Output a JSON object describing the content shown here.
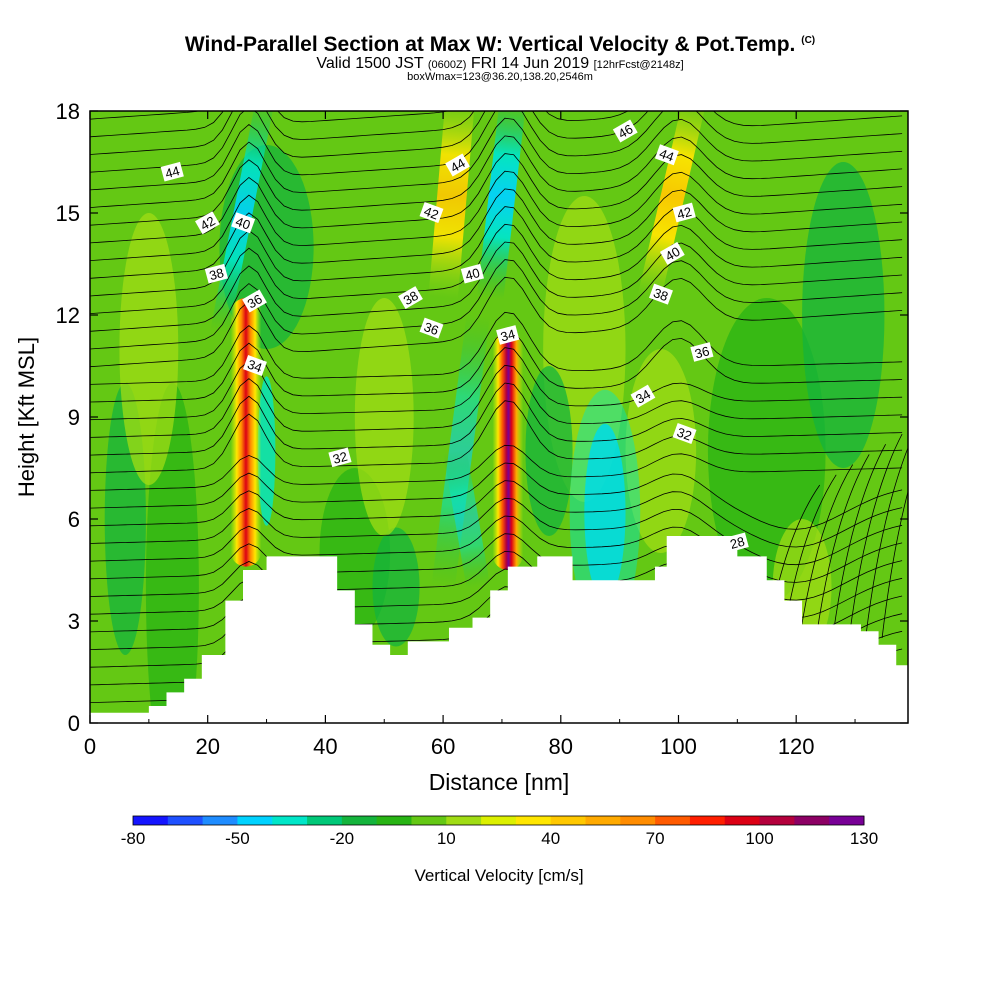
{
  "header": {
    "title": "Wind-Parallel Section at Max W: Vertical Velocity & Pot.Temp.",
    "copyright": "(C)",
    "valid_prefix": "Valid 1500 JST",
    "valid_utc": "(0600Z)",
    "valid_date": "FRI 14 Jun 2019",
    "forecast": "[12hrFcst@2148z]",
    "boxinfo": "boxWmax=123@36.20,138.20,2546m"
  },
  "chart_data": {
    "type": "heatmap",
    "xlabel": "Distance [nm]",
    "ylabel": "Height [Kft MSL]",
    "xlim": [
      0,
      139
    ],
    "ylim": [
      0,
      18
    ],
    "xticks": [
      0,
      20,
      40,
      60,
      80,
      100,
      120
    ],
    "yticks": [
      0,
      3,
      6,
      9,
      12,
      15,
      18
    ],
    "colorbar": {
      "label": "Vertical Velocity [cm/s]",
      "ticks": [
        -80,
        -50,
        -20,
        10,
        40,
        70,
        100,
        130
      ],
      "colors": [
        "#1414ff",
        "#1e50ff",
        "#1e8cff",
        "#00d2ff",
        "#00e6c8",
        "#00c878",
        "#14b43c",
        "#28b414",
        "#64c814",
        "#a0dc14",
        "#dcf000",
        "#ffe600",
        "#ffc800",
        "#ffaa00",
        "#ff8c00",
        "#ff5a00",
        "#ff1e00",
        "#dc0014",
        "#b4003c",
        "#8c0064",
        "#780096"
      ]
    },
    "terrain_profile": [
      [
        0,
        0.3
      ],
      [
        10,
        0.5
      ],
      [
        13,
        0.9
      ],
      [
        16,
        1.3
      ],
      [
        19,
        2.0
      ],
      [
        23,
        3.6
      ],
      [
        26,
        4.5
      ],
      [
        30,
        4.9
      ],
      [
        39,
        4.9
      ],
      [
        42,
        3.9
      ],
      [
        45,
        2.9
      ],
      [
        48,
        2.3
      ],
      [
        51,
        2.0
      ],
      [
        54,
        2.4
      ],
      [
        61,
        2.8
      ],
      [
        65,
        3.1
      ],
      [
        68,
        3.9
      ],
      [
        71,
        4.6
      ],
      [
        76,
        4.9
      ],
      [
        82,
        4.2
      ],
      [
        91,
        4.2
      ],
      [
        96,
        4.6
      ],
      [
        98,
        5.5
      ],
      [
        107,
        5.5
      ],
      [
        110,
        4.9
      ],
      [
        115,
        4.2
      ],
      [
        118,
        3.6
      ],
      [
        121,
        2.9
      ],
      [
        126,
        2.9
      ],
      [
        131,
        2.7
      ],
      [
        134,
        2.3
      ],
      [
        137,
        1.7
      ],
      [
        139,
        1.3
      ]
    ],
    "updraft_cores": [
      {
        "x": 26.5,
        "bottom": 4.6,
        "top": 12.5,
        "peak": 100
      },
      {
        "x": 71,
        "bottom": 4.5,
        "top": 11.5,
        "peak": 130
      }
    ],
    "contour_labels": [
      {
        "text": "44",
        "x": 14,
        "y": 16.2
      },
      {
        "text": "42",
        "x": 20,
        "y": 14.7
      },
      {
        "text": "40",
        "x": 26,
        "y": 14.7
      },
      {
        "text": "38",
        "x": 21.5,
        "y": 13.2
      },
      {
        "text": "36",
        "x": 28,
        "y": 12.4
      },
      {
        "text": "34",
        "x": 28,
        "y": 10.5
      },
      {
        "text": "32",
        "x": 42.5,
        "y": 7.8
      },
      {
        "text": "44",
        "x": 62.5,
        "y": 16.4
      },
      {
        "text": "42",
        "x": 58,
        "y": 15.0
      },
      {
        "text": "40",
        "x": 65,
        "y": 13.2
      },
      {
        "text": "38",
        "x": 54.5,
        "y": 12.5
      },
      {
        "text": "36",
        "x": 58,
        "y": 11.6
      },
      {
        "text": "34",
        "x": 71,
        "y": 11.4
      },
      {
        "text": "46",
        "x": 91,
        "y": 17.4
      },
      {
        "text": "44",
        "x": 98,
        "y": 16.7
      },
      {
        "text": "42",
        "x": 101,
        "y": 15.0
      },
      {
        "text": "40",
        "x": 99,
        "y": 13.8
      },
      {
        "text": "38",
        "x": 97,
        "y": 12.6
      },
      {
        "text": "36",
        "x": 104,
        "y": 10.9
      },
      {
        "text": "34",
        "x": 94,
        "y": 9.6
      },
      {
        "text": "32",
        "x": 101,
        "y": 8.5
      },
      {
        "text": "28",
        "x": 110,
        "y": 5.3
      }
    ]
  }
}
